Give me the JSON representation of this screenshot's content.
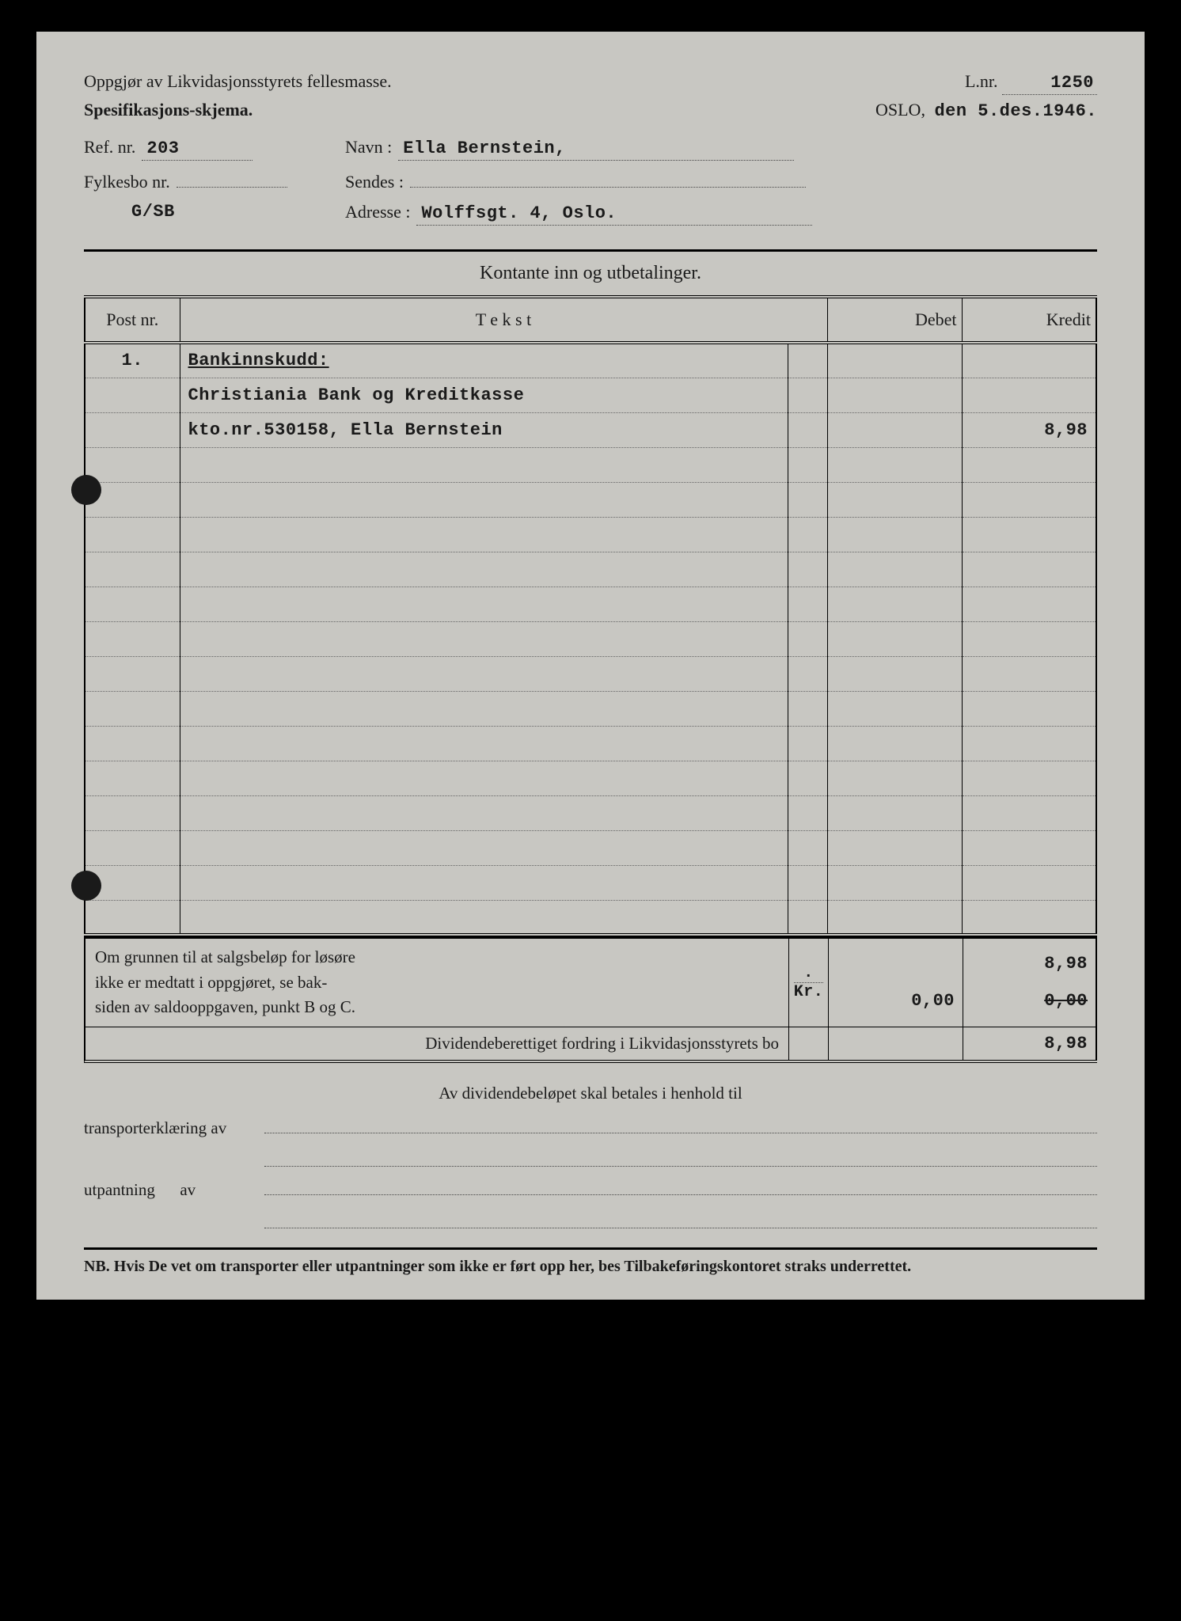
{
  "header": {
    "title1": "Oppgjør av Likvidasjonsstyrets fellesmasse.",
    "title2": "Spesifikasjons-skjema.",
    "lnr_label": "L.nr.",
    "lnr_value": "1250",
    "city": "OSLO,",
    "date_prefix": "den",
    "date_value": "5.des.1946."
  },
  "meta": {
    "ref_label": "Ref. nr.",
    "ref_value": "203",
    "navn_label": "Navn :",
    "navn_value": "Ella Bernstein,",
    "fylkesbo_label": "Fylkesbo nr.",
    "fylkesbo_value": "",
    "sendes_label": "Sendes :",
    "sendes_value": "",
    "code": "G/SB",
    "adresse_label": "Adresse :",
    "adresse_value": "Wolffsgt. 4, Oslo."
  },
  "section_title": "Kontante inn og utbetalinger.",
  "columns": {
    "post": "Post nr.",
    "tekst": "T e k s t",
    "debet": "Debet",
    "kredit": "Kredit"
  },
  "rows": [
    {
      "post": "1.",
      "tekst": "Bankinnskudd:",
      "debet": "",
      "kredit": "",
      "underline": true
    },
    {
      "post": "",
      "tekst": "Christiania Bank og Kreditkasse",
      "debet": "",
      "kredit": ""
    },
    {
      "post": "",
      "tekst": "kto.nr.530158, Ella Bernstein",
      "debet": "",
      "kredit": "8,98"
    },
    {
      "post": "",
      "tekst": "",
      "debet": "",
      "kredit": ""
    },
    {
      "post": "",
      "tekst": "",
      "debet": "",
      "kredit": ""
    },
    {
      "post": "",
      "tekst": "",
      "debet": "",
      "kredit": ""
    },
    {
      "post": "",
      "tekst": "",
      "debet": "",
      "kredit": ""
    },
    {
      "post": "",
      "tekst": "",
      "debet": "",
      "kredit": ""
    },
    {
      "post": "",
      "tekst": "",
      "debet": "",
      "kredit": ""
    },
    {
      "post": "",
      "tekst": "",
      "debet": "",
      "kredit": ""
    },
    {
      "post": "",
      "tekst": "",
      "debet": "",
      "kredit": ""
    },
    {
      "post": "",
      "tekst": "",
      "debet": "",
      "kredit": ""
    },
    {
      "post": "",
      "tekst": "",
      "debet": "",
      "kredit": ""
    },
    {
      "post": "",
      "tekst": "",
      "debet": "",
      "kredit": ""
    },
    {
      "post": "",
      "tekst": "",
      "debet": "",
      "kredit": ""
    },
    {
      "post": "",
      "tekst": "",
      "debet": "",
      "kredit": ""
    },
    {
      "post": "",
      "tekst": "",
      "debet": "",
      "kredit": ""
    }
  ],
  "footer": {
    "note1": "Om grunnen til at salgsbeløp for løsøre",
    "note2": "ikke er medtatt i oppgjøret, se bak-",
    "note3": "siden av saldooppgaven, punkt B og C.",
    "kr_label": "Kr.",
    "sum_debet": "0,00",
    "sum_kredit": "8,98",
    "strike_val": "0,00",
    "div_label": "Dividendeberettiget fordring i Likvidasjonsstyrets bo",
    "div_value": "8,98"
  },
  "bottom": {
    "title": "Av dividendebeløpet skal betales i henhold til",
    "transport_label": "transporterklæring av",
    "utpantning_label": "utpantning",
    "av": "av",
    "nb": "NB.  Hvis De vet om transporter eller utpantninger som ikke er ført opp her, bes Tilbakeføringskontoret straks underrettet."
  },
  "style": {
    "paper_bg": "#c8c7c2",
    "ink": "#1a1a1a",
    "dot_color": "#444"
  }
}
